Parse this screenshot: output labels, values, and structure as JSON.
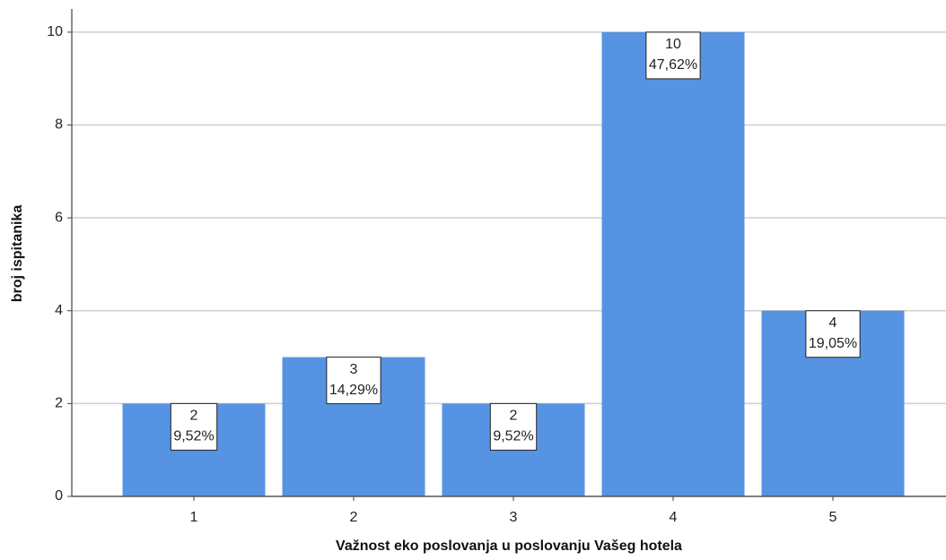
{
  "chart_data": {
    "type": "bar",
    "xlabel": "Važnost eko poslovanja u poslovanju Vašeg hotela",
    "ylabel": "broj ispitanika",
    "categories": [
      "1",
      "2",
      "3",
      "4",
      "5"
    ],
    "values": [
      2,
      3,
      2,
      10,
      4
    ],
    "percents": [
      9.52,
      14.29,
      9.52,
      47.62,
      19.05
    ],
    "percent_labels": [
      "9,52%",
      "14,29%",
      "9,52%",
      "47,62%",
      "19,05%"
    ],
    "color": "#5694e3",
    "ylim": [
      0,
      10.5
    ],
    "yticks": [
      0,
      2,
      4,
      6,
      8,
      10
    ],
    "grid": true
  }
}
